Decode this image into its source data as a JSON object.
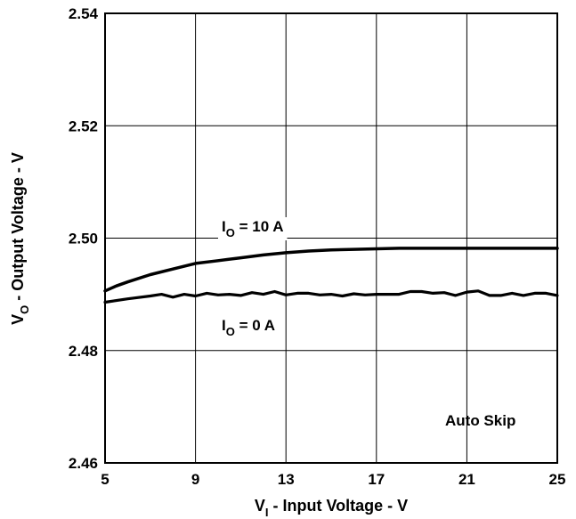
{
  "chart_data": {
    "type": "line",
    "xlabel": {
      "main": "V",
      "sub": "I",
      "rest": " - Input Voltage - V"
    },
    "ylabel": {
      "main": "V",
      "sub": "O",
      "rest": " - Output Voltage - V"
    },
    "xlim": [
      5,
      25
    ],
    "ylim": [
      2.46,
      2.54
    ],
    "x_ticks": [
      "5",
      "9",
      "13",
      "17",
      "21",
      "25"
    ],
    "y_ticks": [
      "2.46",
      "2.48",
      "2.50",
      "2.52",
      "2.54"
    ],
    "grid": true,
    "series": [
      {
        "name": "IO = 10 A",
        "label": {
          "main": "I",
          "sub": "O",
          "rest": " = 10 A"
        },
        "x": [
          5,
          5.5,
          6,
          7,
          8,
          9,
          10,
          11,
          12,
          13,
          14,
          15,
          16,
          17,
          18,
          19,
          20,
          21,
          22,
          23,
          24,
          25
        ],
        "y": [
          2.4906,
          2.4915,
          2.4922,
          2.4935,
          2.4945,
          2.4955,
          2.496,
          2.4965,
          2.497,
          2.4974,
          2.4977,
          2.4979,
          2.498,
          2.4981,
          2.4982,
          2.4982,
          2.4982,
          2.4982,
          2.4982,
          2.4982,
          2.4982,
          2.4982
        ]
      },
      {
        "name": "IO = 0 A",
        "label": {
          "main": "I",
          "sub": "O",
          "rest": " = 0 A"
        },
        "x": [
          5,
          6,
          7,
          7.5,
          8,
          8.5,
          9,
          9.5,
          10,
          10.5,
          11,
          11.5,
          12,
          12.5,
          13,
          13.5,
          14,
          14.5,
          15,
          15.5,
          16,
          16.5,
          17,
          17.5,
          18,
          18.5,
          19,
          19.5,
          20,
          20.5,
          21,
          21.5,
          22,
          22.5,
          23,
          23.5,
          24,
          24.5,
          25
        ],
        "y": [
          2.4886,
          2.4892,
          2.4897,
          2.49,
          2.4895,
          2.49,
          2.4897,
          2.4902,
          2.4899,
          2.49,
          2.4898,
          2.4903,
          2.49,
          2.4905,
          2.4899,
          2.4902,
          2.4902,
          2.4899,
          2.49,
          2.4897,
          2.4901,
          2.4899,
          2.49,
          2.49,
          2.49,
          2.4905,
          2.4905,
          2.4902,
          2.4903,
          2.4898,
          2.4904,
          2.4906,
          2.4898,
          2.4898,
          2.4902,
          2.4898,
          2.4902,
          2.4902,
          2.4898
        ]
      }
    ],
    "annotations": [
      {
        "text": "Auto Skip"
      }
    ]
  }
}
